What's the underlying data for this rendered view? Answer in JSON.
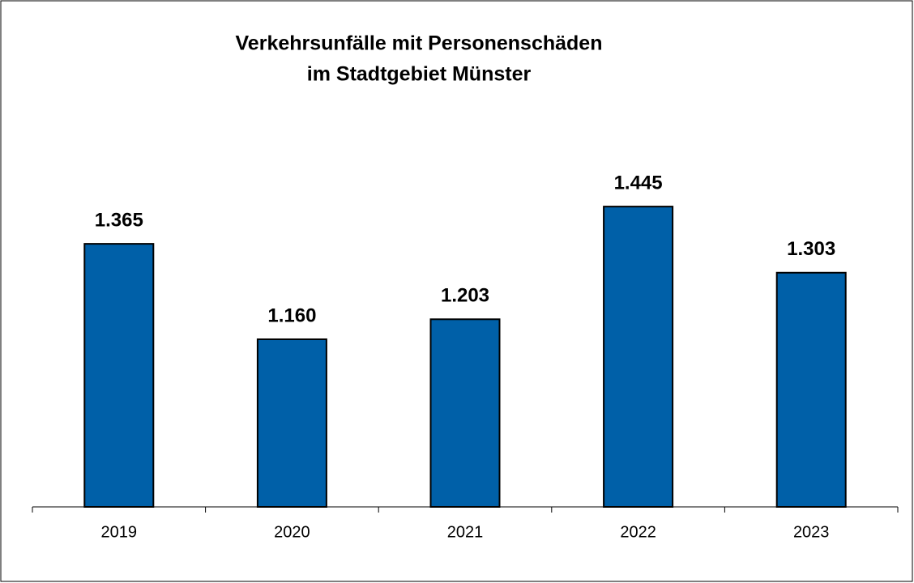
{
  "chart_data": {
    "type": "bar",
    "title": [
      "Verkehrsunfälle mit Personenschäden",
      "im Stadtgebiet Münster"
    ],
    "categories": [
      "2019",
      "2020",
      "2021",
      "2022",
      "2023"
    ],
    "values": [
      1365,
      1160,
      1203,
      1445,
      1303
    ],
    "value_labels": [
      "1.365",
      "1.160",
      "1.203",
      "1.445",
      "1.303"
    ],
    "color": "#0060a8",
    "ylim": [
      800,
      1600
    ]
  }
}
